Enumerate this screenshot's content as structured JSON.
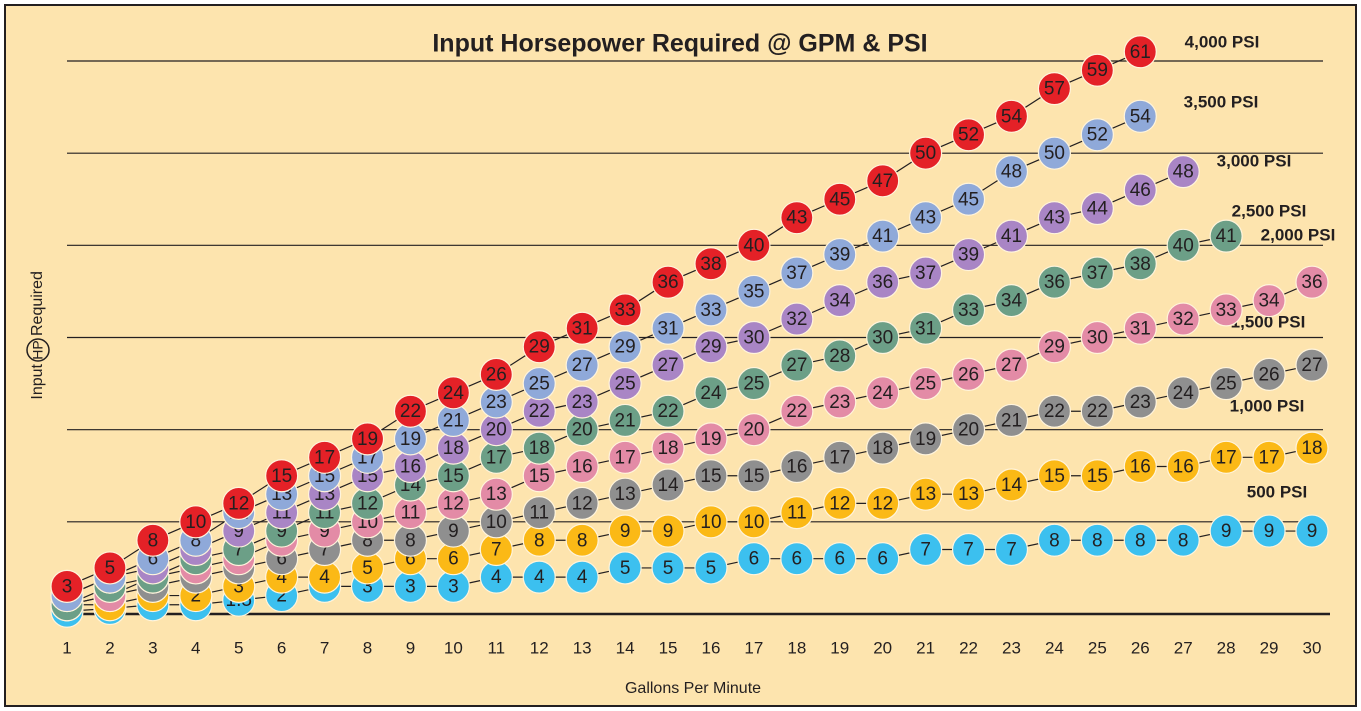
{
  "chart_data": {
    "type": "line",
    "title": "Input Horsepower Required @ GPM & PSI",
    "xlabel": "Gallons Per Minute",
    "ylabel_left": "Input",
    "ylabel_badge": "HP",
    "ylabel_right": "Required",
    "x": [
      1,
      2,
      3,
      4,
      5,
      6,
      7,
      8,
      9,
      10,
      11,
      12,
      13,
      14,
      15,
      16,
      17,
      18,
      19,
      20,
      21,
      22,
      23,
      24,
      25,
      26,
      27,
      28,
      29,
      30
    ],
    "xlim": [
      1,
      30
    ],
    "ylim": [
      0,
      60
    ],
    "yticks": [
      0,
      10,
      20,
      30,
      40,
      50,
      60
    ],
    "grid": true,
    "series": [
      {
        "name": "500 PSI",
        "color": "#3cc0ef",
        "values": [
          0.3,
          0.6,
          1,
          1,
          1.5,
          2,
          3,
          3,
          3,
          3,
          4,
          4,
          4,
          5,
          5,
          5,
          6,
          6,
          6,
          6,
          7,
          7,
          7,
          8,
          8,
          8,
          8,
          9,
          9,
          9
        ]
      },
      {
        "name": "1,000 PSI",
        "color": "#fbb916",
        "values": [
          1,
          1,
          2,
          2,
          3,
          4,
          4,
          5,
          6,
          6,
          7,
          8,
          8,
          9,
          9,
          10,
          10,
          11,
          12,
          12,
          13,
          13,
          14,
          15,
          15,
          16,
          16,
          17,
          17,
          18
        ]
      },
      {
        "name": "1,500 PSI",
        "color": "#8f8f8f",
        "values": [
          1,
          2,
          3,
          4,
          5,
          6,
          7,
          8,
          8,
          9,
          10,
          11,
          12,
          13,
          14,
          15,
          15,
          16,
          17,
          18,
          19,
          20,
          21,
          22,
          22,
          23,
          24,
          25,
          26,
          27
        ]
      },
      {
        "name": "2,000 PSI",
        "color": "#e38ba6",
        "values": [
          1,
          2,
          4,
          5,
          6,
          8,
          9,
          10,
          11,
          12,
          13,
          15,
          16,
          17,
          18,
          19,
          20,
          22,
          23,
          24,
          25,
          26,
          27,
          29,
          30,
          31,
          32,
          33,
          34,
          36
        ]
      },
      {
        "name": "2,500 PSI",
        "color": "#6c9f87",
        "values": [
          1,
          3,
          4,
          6,
          7,
          9,
          11,
          12,
          14,
          15,
          17,
          18,
          20,
          21,
          22,
          24,
          25,
          27,
          28,
          30,
          31,
          33,
          34,
          36,
          37,
          38,
          40,
          41,
          null,
          null
        ]
      },
      {
        "name": "3,000 PSI",
        "color": "#a985c5",
        "values": [
          2,
          4,
          5,
          7,
          9,
          11,
          13,
          15,
          16,
          18,
          20,
          22,
          23,
          25,
          27,
          29,
          30,
          32,
          34,
          36,
          37,
          39,
          41,
          43,
          44,
          46,
          48,
          null,
          null,
          null
        ]
      },
      {
        "name": "3,500 PSI",
        "color": "#8fa9d9",
        "values": [
          2,
          4,
          6,
          8,
          11,
          13,
          15,
          17,
          19,
          21,
          23,
          25,
          27,
          29,
          31,
          33,
          35,
          37,
          39,
          41,
          43,
          45,
          48,
          50,
          52,
          54,
          null,
          null,
          null,
          null
        ]
      },
      {
        "name": "4,000 PSI",
        "color": "#e42127",
        "values": [
          3,
          5,
          8,
          10,
          12,
          15,
          17,
          19,
          22,
          24,
          26,
          29,
          31,
          33,
          36,
          38,
          40,
          43,
          45,
          47,
          50,
          52,
          54,
          57,
          59,
          61,
          null,
          null,
          null,
          null
        ]
      }
    ]
  }
}
